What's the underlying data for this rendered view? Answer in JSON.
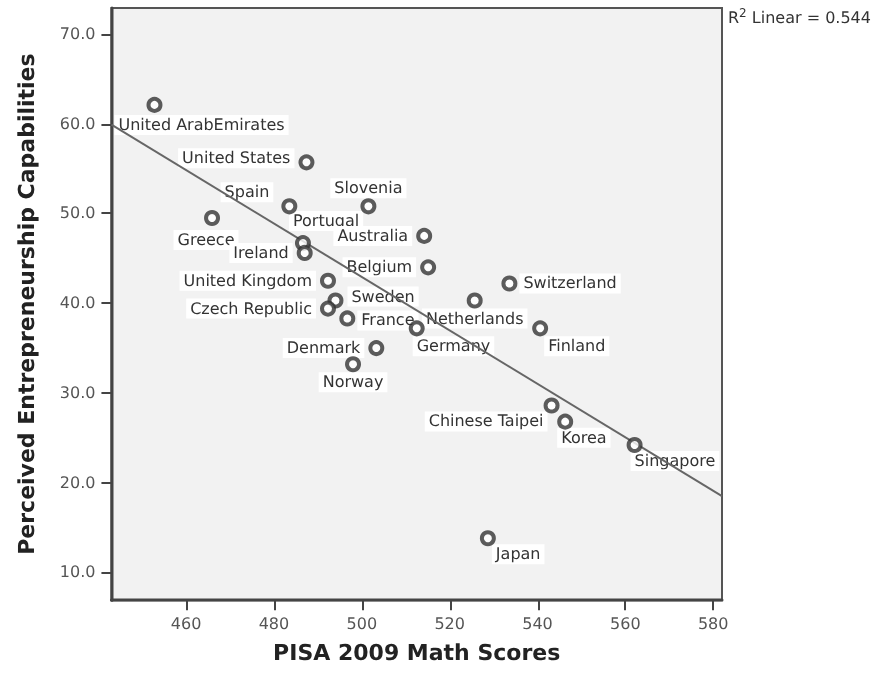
{
  "chart_data": {
    "type": "scatter",
    "xlabel": "PISA 2009 Math Scores",
    "ylabel": "Perceived Entrepreneurship Capabilities",
    "xlim": [
      443,
      582
    ],
    "xticks": [
      460,
      480,
      500,
      520,
      540,
      560,
      580
    ],
    "ylim": [
      6.9,
      72.9
    ],
    "yticks": [
      {
        "value": 10,
        "label": "10.0"
      },
      {
        "value": 20,
        "label": "20.0"
      },
      {
        "value": 30,
        "label": "30.0"
      },
      {
        "value": 40,
        "label": "40.0"
      },
      {
        "value": 50,
        "label": "50.0"
      },
      {
        "value": 60,
        "label": "60.0"
      },
      {
        "value": 70,
        "label": "70.0"
      }
    ],
    "grid": false,
    "marker": "circle",
    "series": [
      {
        "color": "#333333",
        "x": [
          452.8,
          487.4,
          483.5,
          501.5,
          465.9,
          486.6,
          487.0,
          514.2,
          515.1,
          492.3,
          494.0,
          492.3,
          496.7,
          512.5,
          503.3,
          498.0,
          525.7,
          533.6,
          540.6,
          543.2,
          546.3,
          562.1,
          528.7
        ],
        "values": [
          62.1,
          55.7,
          50.8,
          50.8,
          49.5,
          46.7,
          45.6,
          47.5,
          44.0,
          42.5,
          40.3,
          39.4,
          38.3,
          37.2,
          35.0,
          33.2,
          40.3,
          42.2,
          37.2,
          28.6,
          26.8,
          24.2,
          13.8
        ]
      },
      {
        "type": "line",
        "color": "#666666",
        "marker": "none",
        "x": [
          443,
          582
        ],
        "values": [
          59.9,
          18.5
        ]
      }
    ],
    "annotations": [
      {
        "text": "United ArabEmirates",
        "x": 452.8,
        "y": 62.1
      },
      {
        "text": "United States",
        "x": 487.4,
        "y": 55.7
      },
      {
        "text": "Spain",
        "x": 483.5,
        "y": 50.8
      },
      {
        "text": "Slovenia",
        "x": 501.5,
        "y": 50.8
      },
      {
        "text": "Greece",
        "x": 465.9,
        "y": 49.5
      },
      {
        "text": "Portugal",
        "x": 486.6,
        "y": 46.7
      },
      {
        "text": "Ireland",
        "x": 487.0,
        "y": 45.6
      },
      {
        "text": "Australia",
        "x": 514.2,
        "y": 47.5
      },
      {
        "text": "Belgium",
        "x": 515.1,
        "y": 44.0
      },
      {
        "text": "United Kingdom",
        "x": 492.3,
        "y": 42.5
      },
      {
        "text": "Sweden",
        "x": 494.0,
        "y": 40.3
      },
      {
        "text": "Czech Republic",
        "x": 492.3,
        "y": 39.4
      },
      {
        "text": "France",
        "x": 496.7,
        "y": 38.3
      },
      {
        "text": "Germany",
        "x": 512.5,
        "y": 37.2
      },
      {
        "text": "Denmark",
        "x": 503.3,
        "y": 35.0
      },
      {
        "text": "Norway",
        "x": 498.0,
        "y": 33.2
      },
      {
        "text": "Netherlands",
        "x": 525.7,
        "y": 40.3
      },
      {
        "text": "Switzerland",
        "x": 533.6,
        "y": 42.2
      },
      {
        "text": "Finland",
        "x": 540.6,
        "y": 37.2
      },
      {
        "text": "Chinese Taipei",
        "x": 543.2,
        "y": 28.6
      },
      {
        "text": "Korea",
        "x": 546.3,
        "y": 26.8
      },
      {
        "text": "Singapore",
        "x": 562.1,
        "y": 24.2
      },
      {
        "text": "Japan",
        "x": 528.7,
        "y": 13.8
      },
      "R$^{2}$ Linear = 0.544"
    ]
  }
}
